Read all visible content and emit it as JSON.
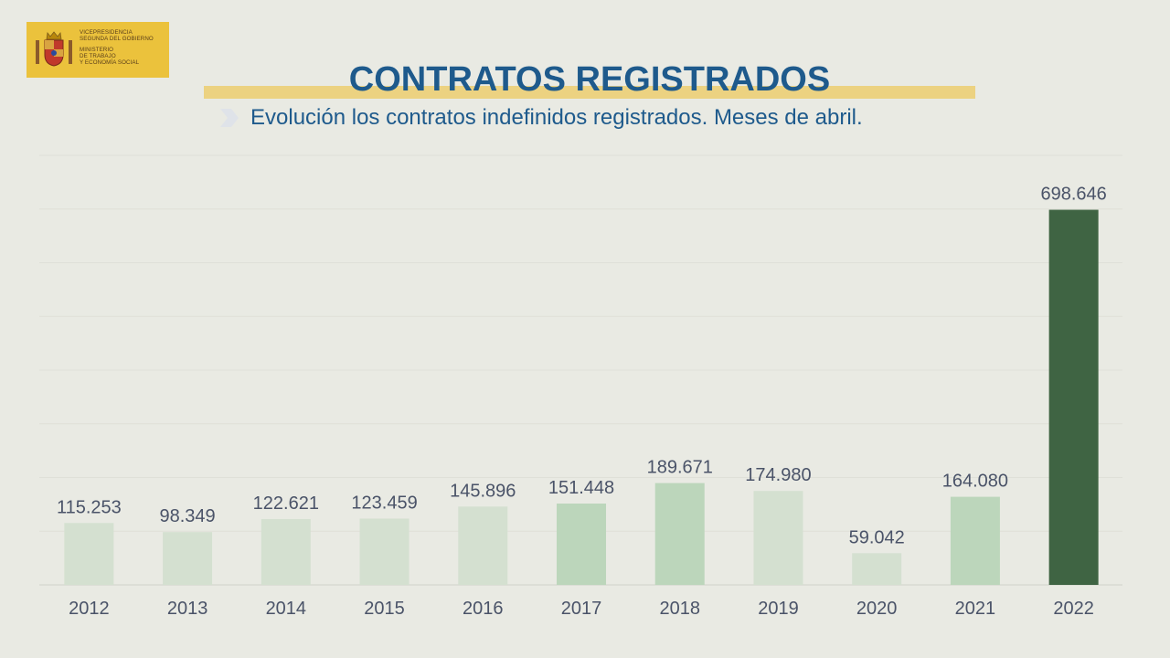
{
  "header": {
    "title": "CONTRATOS REGISTRADOS",
    "subtitle": "Evolución los contratos indefinidos registrados. Meses de abril."
  },
  "logo": {
    "lines_top": [
      "VICEPRESIDENCIA",
      "SEGUNDA DEL GOBIERNO"
    ],
    "lines_bottom": [
      "MINISTERIO",
      "DE TRABAJO",
      "Y ECONOMÍA SOCIAL"
    ]
  },
  "colors": {
    "pale": "#d4e0d0",
    "light": "#bcd6bb",
    "dark": "#3f6443"
  },
  "chart_data": {
    "type": "bar",
    "title": "CONTRATOS REGISTRADOS",
    "subtitle": "Evolución los contratos indefinidos registrados. Meses de abril.",
    "xlabel": "",
    "ylabel": "",
    "ylim": [
      0,
      800000
    ],
    "grid": true,
    "categories": [
      "2012",
      "2013",
      "2014",
      "2015",
      "2016",
      "2017",
      "2018",
      "2019",
      "2020",
      "2021",
      "2022"
    ],
    "values": [
      115253,
      98349,
      122621,
      123459,
      145896,
      151448,
      189671,
      174980,
      59042,
      164080,
      698646
    ],
    "value_labels": [
      "115.253",
      "98.349",
      "122.621",
      "123.459",
      "145.896",
      "151.448",
      "189.671",
      "174.980",
      "59.042",
      "164.080",
      "698.646"
    ],
    "bar_shades": [
      "pale",
      "pale",
      "pale",
      "pale",
      "pale",
      "light",
      "light",
      "pale",
      "pale",
      "light",
      "dark"
    ]
  }
}
